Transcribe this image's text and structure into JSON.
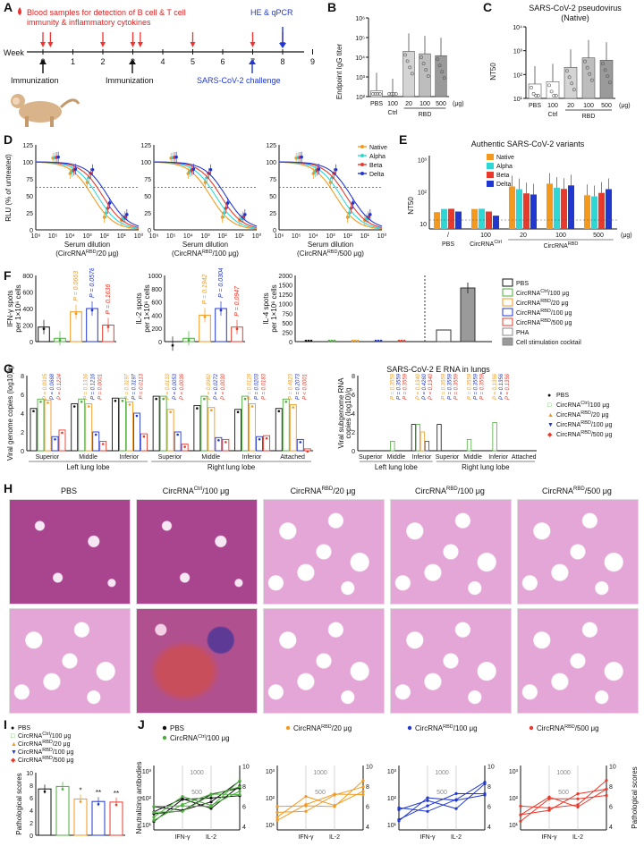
{
  "panel_labels": {
    "A": "A",
    "B": "B",
    "C": "C",
    "D": "D",
    "E": "E",
    "F": "F",
    "G": "G",
    "H": "H",
    "I": "I",
    "J": "J"
  },
  "colors": {
    "native": "#f39a1e",
    "alpha": "#2ed6d4",
    "beta": "#e83a2c",
    "delta": "#2037d0",
    "pbs": "#111111",
    "ctrl": "#4cae3c",
    "rbd20": "#f39a1e",
    "rbd100": "#2037d0",
    "rbd500": "#e83a2c",
    "bar_gray": "#c8c8c8",
    "bar_dark": "#8c8c8c"
  },
  "panelA": {
    "blood_label_1": "Blood samples for detection of B cell & T cell",
    "blood_label_2": "immunity & inflammatory cytokines",
    "hepcr_label": "HE & qPCR",
    "week_label": "Week",
    "weeks": [
      "0",
      "1",
      "2",
      "3",
      "4",
      "5",
      "6",
      "7",
      "8",
      "9"
    ],
    "immunization_1": "Immunization",
    "immunization_2": "Immunization",
    "challenge": "SARS-CoV-2 challenge"
  },
  "panelB": {
    "ylabel": "Endpoint IgG titer",
    "yticks": [
      "10²",
      "10³",
      "10⁴",
      "10⁵",
      "10⁶"
    ],
    "groups": [
      "PBS",
      "100",
      "20",
      "100",
      "500"
    ],
    "group_axis_labels": [
      "Ctrl",
      "RBD"
    ],
    "unit": "(μg)",
    "chart_data": {
      "type": "bar",
      "categories": [
        "PBS",
        "Ctrl 100",
        "RBD 20",
        "RBD 100",
        "RBD 500"
      ],
      "values": [
        200,
        100,
        20000,
        15000,
        12000
      ],
      "log": true
    }
  },
  "panelC": {
    "title_1": "SARS-CoV-2 pseudovirus",
    "title_2": "(Native)",
    "ylabel": "NT50",
    "yticks": [
      "10¹",
      "10²",
      "10³",
      "10⁴"
    ],
    "groups": [
      "PBS",
      "100",
      "20",
      "100",
      "500"
    ],
    "group_axis_labels": [
      "Ctrl",
      "RBD"
    ],
    "unit": "(μg)",
    "chart_data": {
      "type": "bar",
      "categories": [
        "PBS",
        "Ctrl 100",
        "RBD 20",
        "RBD 100",
        "RBD 500"
      ],
      "values": [
        40,
        50,
        200,
        500,
        400
      ],
      "log": true
    }
  },
  "panelD": {
    "ylabel": "RLU (% of untreated)",
    "yticks": [
      "0",
      "25",
      "50",
      "75",
      "100",
      "125"
    ],
    "xticks": [
      "10⁶",
      "10⁵",
      "10⁴",
      "10³",
      "10²",
      "10¹",
      "10⁰"
    ],
    "xlabel": "Serum dilution",
    "sub_1": "(CircRNA",
    "sub_1_sup": "RBD",
    "sub_1_end": "/20 μg)",
    "sub_2": "(CircRNA",
    "sub_2_sup": "RBD",
    "sub_2_end": "/100 μg)",
    "sub_3": "(CircRNA",
    "sub_3_sup": "RBD",
    "sub_3_end": "/500 μg)",
    "legend": [
      "Native",
      "Alpha",
      "Beta",
      "Delta"
    ]
  },
  "panelE": {
    "title": "Authentic SARS-CoV-2 variants",
    "ylabel": "NT50",
    "yticks": [
      "10",
      "10²",
      "10³"
    ],
    "legend": [
      "Native",
      "Alpha",
      "Beta",
      "Delta"
    ],
    "groups": [
      "/",
      "100",
      "20",
      "100",
      "500"
    ],
    "unit": "(μg)",
    "axis_groups": [
      "PBS",
      "CircRNA",
      "CircRNA"
    ],
    "axis_sups": [
      "Ctrl",
      "RBD"
    ]
  },
  "panelF": {
    "ylabel_1": "IFN-γ spots",
    "ylabel_2": "IL-2 spots",
    "ylabel_3": "IL-4 spots",
    "ylabel_unit": "per 1×10⁶ cells",
    "yticks_1": [
      "0",
      "200",
      "400",
      "600",
      "800"
    ],
    "yticks_2": [
      "0",
      "200",
      "400",
      "600",
      "800",
      "1000"
    ],
    "yticks_3": [
      "0",
      "250",
      "500",
      "750",
      "1000",
      "1250",
      "1500",
      "2000"
    ],
    "pvals_1": [
      "P = 0.0663",
      "P = 0.0578",
      "P = 0.1636"
    ],
    "pvals_2": [
      "P = 0.1942",
      "P = 0.0304",
      "P = 0.0947"
    ],
    "legend": [
      "PBS",
      "CircRNACtrl/100 μg",
      "CircRNARBD/20 μg",
      "CircRNARBD/100 μg",
      "CircRNARBD/500 μg",
      "PHA",
      "Cell stimulation cocktail"
    ],
    "legend_main": [
      "PBS",
      "CircRNA",
      "CircRNA",
      "CircRNA",
      "CircRNA",
      "PHA",
      "Cell stimulation cocktail"
    ],
    "legend_sup": [
      "",
      "Ctrl",
      "RBD",
      "RBD",
      "RBD",
      "",
      ""
    ],
    "legend_end": [
      "",
      "/100 μg",
      "/20 μg",
      "/100 μg",
      "/500 μg",
      "",
      ""
    ]
  },
  "panelG": {
    "ylabel_left": "Viral genome copies (log10)/g",
    "ylabel_right_1": "Viral subgenome RNA",
    "ylabel_right_2": "copies (log10)/g",
    "right_title": "SARS-CoV-2 E RNA in lungs",
    "yticks": [
      "0",
      "2",
      "4",
      "6",
      "8"
    ],
    "lobes": [
      "Superior",
      "Middle",
      "Inferior",
      "Superior",
      "Middle",
      "Inferior",
      "Attached"
    ],
    "lobe_groups": [
      "Left lung lobe",
      "Right lung lobe"
    ],
    "legend_main": [
      "PBS",
      "CircRNA",
      "CircRNA",
      "CircRNA",
      "CircRNA"
    ],
    "legend_sup": [
      "",
      "Ctrl",
      "RBD",
      "RBD",
      "RBD"
    ],
    "legend_end": [
      "",
      "/100 μg",
      "/20 μg",
      "/100 μg",
      "/500 μg"
    ],
    "pvals_left": [
      [
        "P = 0.0915",
        "P = 0.0668",
        "P = 0.1224"
      ],
      [
        "P = 0.1316",
        "P = 0.1216",
        "P = 0.0001"
      ],
      [
        "P = 0.3197",
        "P = 0.3197",
        "P = 0.0113"
      ],
      [
        "P = 0.0133",
        "P = 0.0053",
        "P = 0.0036"
      ],
      [
        "P = 0.0982",
        "P = 0.0272",
        "P = 0.0030"
      ],
      [
        "P = 0.0129",
        "P = 0.0203",
        "P = 0.0183"
      ],
      [
        "P = 0.4823",
        "P = 0.2073",
        "P < 0.0001"
      ]
    ],
    "pvals_right": [
      [
        "P = 0.3559",
        "P = 0.3559",
        "P = 0.3559"
      ],
      [
        "P = 0.1340",
        "P = 0.4260",
        "P = 0.1340"
      ],
      [
        "P = 0.3559",
        "P = 0.3559",
        "P = 0.3559"
      ],
      [
        "P = 0.3559",
        "P = 0.3559",
        "P = 0.3559"
      ],
      [
        "P = 0.1356",
        "P = 0.1356",
        "P = 0.1356"
      ]
    ]
  },
  "panelH": {
    "captions": [
      "PBS",
      "CircRNA",
      "CircRNA",
      "CircRNA",
      "CircRNA"
    ],
    "caption_sup": [
      "",
      "Ctrl",
      "RBD",
      "RBD",
      "RBD"
    ],
    "caption_end": [
      "",
      "/100 μg",
      "/20 μg",
      "/100 μg",
      "/500 μg"
    ]
  },
  "panelI": {
    "ylabel": "Pathological scores",
    "yticks": [
      "0",
      "2",
      "4",
      "6",
      "8",
      "10"
    ],
    "legend_main": [
      "PBS",
      "CircRNA",
      "CircRNA",
      "CircRNA",
      "CircRNA"
    ],
    "legend_sup": [
      "",
      "Ctrl",
      "RBD",
      "RBD",
      "RBD"
    ],
    "legend_end": [
      "",
      "/100 μg",
      "/20 μg",
      "/100 μg",
      "/500 μg"
    ],
    "sig": [
      "*",
      "**",
      "**"
    ],
    "chart_data": {
      "type": "bar",
      "categories": [
        "PBS",
        "Ctrl/100",
        "RBD/20",
        "RBD/100",
        "RBD/500"
      ],
      "values": [
        7.4,
        7.8,
        5.8,
        5.4,
        5.3
      ],
      "ylim": [
        0,
        10
      ]
    }
  },
  "panelJ": {
    "ylabel_left": "Neutralizing antibodies",
    "ylabel_right": "Pathological scores",
    "xticks": [
      "IFN-γ",
      "IL-2"
    ],
    "inner_ticks": [
      "1000",
      "500"
    ],
    "yticks_left": [
      "10¹",
      "10²",
      "10³"
    ],
    "yticks_right": [
      "4",
      "6",
      "8",
      "10"
    ],
    "legend_main": [
      "PBS",
      "CircRNA",
      "CircRNA",
      "CircRNA",
      "CircRNA"
    ],
    "legend_sup": [
      "",
      "Ctrl",
      "RBD",
      "RBD",
      "RBD"
    ],
    "legend_end": [
      "",
      "/100 μg",
      "/20 μg",
      "/100 μg",
      "/500 μg"
    ]
  }
}
